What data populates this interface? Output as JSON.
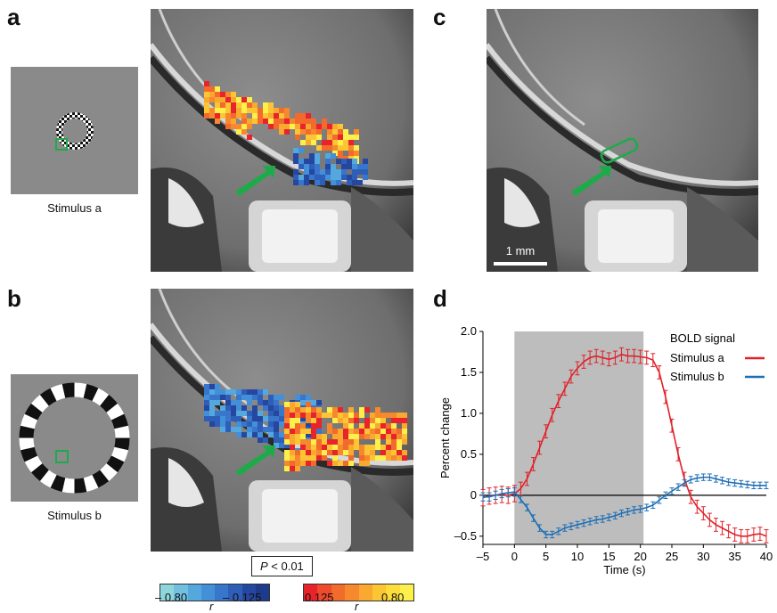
{
  "panels": {
    "a": "a",
    "b": "b",
    "c": "c",
    "d": "d"
  },
  "stimulus_a_caption": "Stimulus a",
  "stimulus_b_caption": "Stimulus b",
  "scale_bar_label": "1 mm",
  "pvalue": {
    "prefix": "P",
    "suffix": " < 0.01"
  },
  "colorbar": {
    "neg_left": "– 0.80",
    "neg_right": "– 0.125",
    "pos_left": "0.125",
    "pos_right": "0.80",
    "r_left": "r",
    "r_right": "r",
    "neg_colors": [
      "#8fd6dc",
      "#71c0e0",
      "#55a8de",
      "#438fd8",
      "#3876cc",
      "#2e5eb8",
      "#26479f",
      "#1e3a8a"
    ],
    "pos_colors": [
      "#e8232b",
      "#ee4a2b",
      "#f26a2c",
      "#f6892d",
      "#f9a830",
      "#fbc534",
      "#fcdd3c",
      "#fdf04c"
    ]
  },
  "colors": {
    "arrow": "#1faa4a",
    "red": "#e02128",
    "blue": "#1f6fb5",
    "shade": "#bdbdbd"
  },
  "chart_data": {
    "type": "line",
    "xlabel": "Time (s)",
    "ylabel": "Percent change",
    "xlim": [
      -5,
      40
    ],
    "ylim": [
      -0.6,
      2.0
    ],
    "xticks": [
      -5,
      0,
      5,
      10,
      15,
      20,
      25,
      30,
      35,
      40
    ],
    "yticks": [
      -0.5,
      0,
      0.5,
      1.0,
      1.5,
      2.0
    ],
    "ytick_labels": [
      "–0.5",
      "0",
      "0.5",
      "1.0",
      "1.5",
      "2.0"
    ],
    "xtick_labels": [
      "–5",
      "0",
      "5",
      "10",
      "15",
      "20",
      "25",
      "30",
      "35",
      "40"
    ],
    "stimulus_interval": [
      0,
      20.5
    ],
    "legend_title": "BOLD signal",
    "legend_position": "top-right",
    "x": [
      -5,
      -4,
      -3,
      -2,
      -1,
      0,
      1,
      2,
      3,
      4,
      5,
      6,
      7,
      8,
      9,
      10,
      11,
      12,
      13,
      14,
      15,
      16,
      17,
      18,
      19,
      20,
      21,
      22,
      23,
      24,
      25,
      26,
      27,
      28,
      29,
      30,
      31,
      32,
      33,
      34,
      35,
      36,
      37,
      38,
      39,
      40
    ],
    "series": [
      {
        "name": "Stimulus a",
        "color": "#e02128",
        "values": [
          -0.03,
          -0.01,
          0.0,
          0.01,
          0.0,
          0.02,
          0.08,
          0.2,
          0.38,
          0.58,
          0.78,
          0.98,
          1.15,
          1.3,
          1.45,
          1.55,
          1.63,
          1.68,
          1.7,
          1.68,
          1.66,
          1.68,
          1.72,
          1.7,
          1.7,
          1.69,
          1.68,
          1.65,
          1.5,
          1.2,
          0.85,
          0.5,
          0.2,
          -0.02,
          -0.14,
          -0.22,
          -0.3,
          -0.36,
          -0.4,
          -0.44,
          -0.48,
          -0.5,
          -0.5,
          -0.48,
          -0.47,
          -0.5
        ],
        "errors": [
          0.1,
          0.1,
          0.1,
          0.1,
          0.1,
          0.1,
          0.08,
          0.08,
          0.08,
          0.08,
          0.08,
          0.08,
          0.08,
          0.08,
          0.08,
          0.08,
          0.08,
          0.08,
          0.08,
          0.08,
          0.08,
          0.08,
          0.08,
          0.08,
          0.08,
          0.08,
          0.08,
          0.08,
          0.08,
          0.08,
          0.08,
          0.08,
          0.08,
          0.08,
          0.08,
          0.08,
          0.08,
          0.08,
          0.08,
          0.08,
          0.08,
          0.08,
          0.08,
          0.08,
          0.08,
          0.08
        ]
      },
      {
        "name": "Stimulus b",
        "color": "#1f6fb5",
        "values": [
          -0.02,
          -0.02,
          0.0,
          0.02,
          0.03,
          0.04,
          -0.05,
          -0.15,
          -0.28,
          -0.4,
          -0.48,
          -0.48,
          -0.44,
          -0.4,
          -0.38,
          -0.36,
          -0.34,
          -0.32,
          -0.3,
          -0.29,
          -0.27,
          -0.25,
          -0.22,
          -0.2,
          -0.18,
          -0.17,
          -0.15,
          -0.12,
          -0.06,
          0.0,
          0.05,
          0.1,
          0.15,
          0.19,
          0.21,
          0.22,
          0.22,
          0.2,
          0.18,
          0.16,
          0.15,
          0.14,
          0.13,
          0.12,
          0.12,
          0.12
        ],
        "errors": [
          0.05,
          0.05,
          0.05,
          0.05,
          0.05,
          0.05,
          0.04,
          0.04,
          0.04,
          0.04,
          0.04,
          0.04,
          0.04,
          0.04,
          0.04,
          0.04,
          0.04,
          0.04,
          0.04,
          0.04,
          0.04,
          0.04,
          0.04,
          0.04,
          0.04,
          0.04,
          0.04,
          0.04,
          0.04,
          0.04,
          0.04,
          0.04,
          0.04,
          0.04,
          0.04,
          0.04,
          0.04,
          0.04,
          0.04,
          0.04,
          0.04,
          0.04,
          0.04,
          0.04,
          0.04,
          0.04
        ]
      }
    ]
  }
}
